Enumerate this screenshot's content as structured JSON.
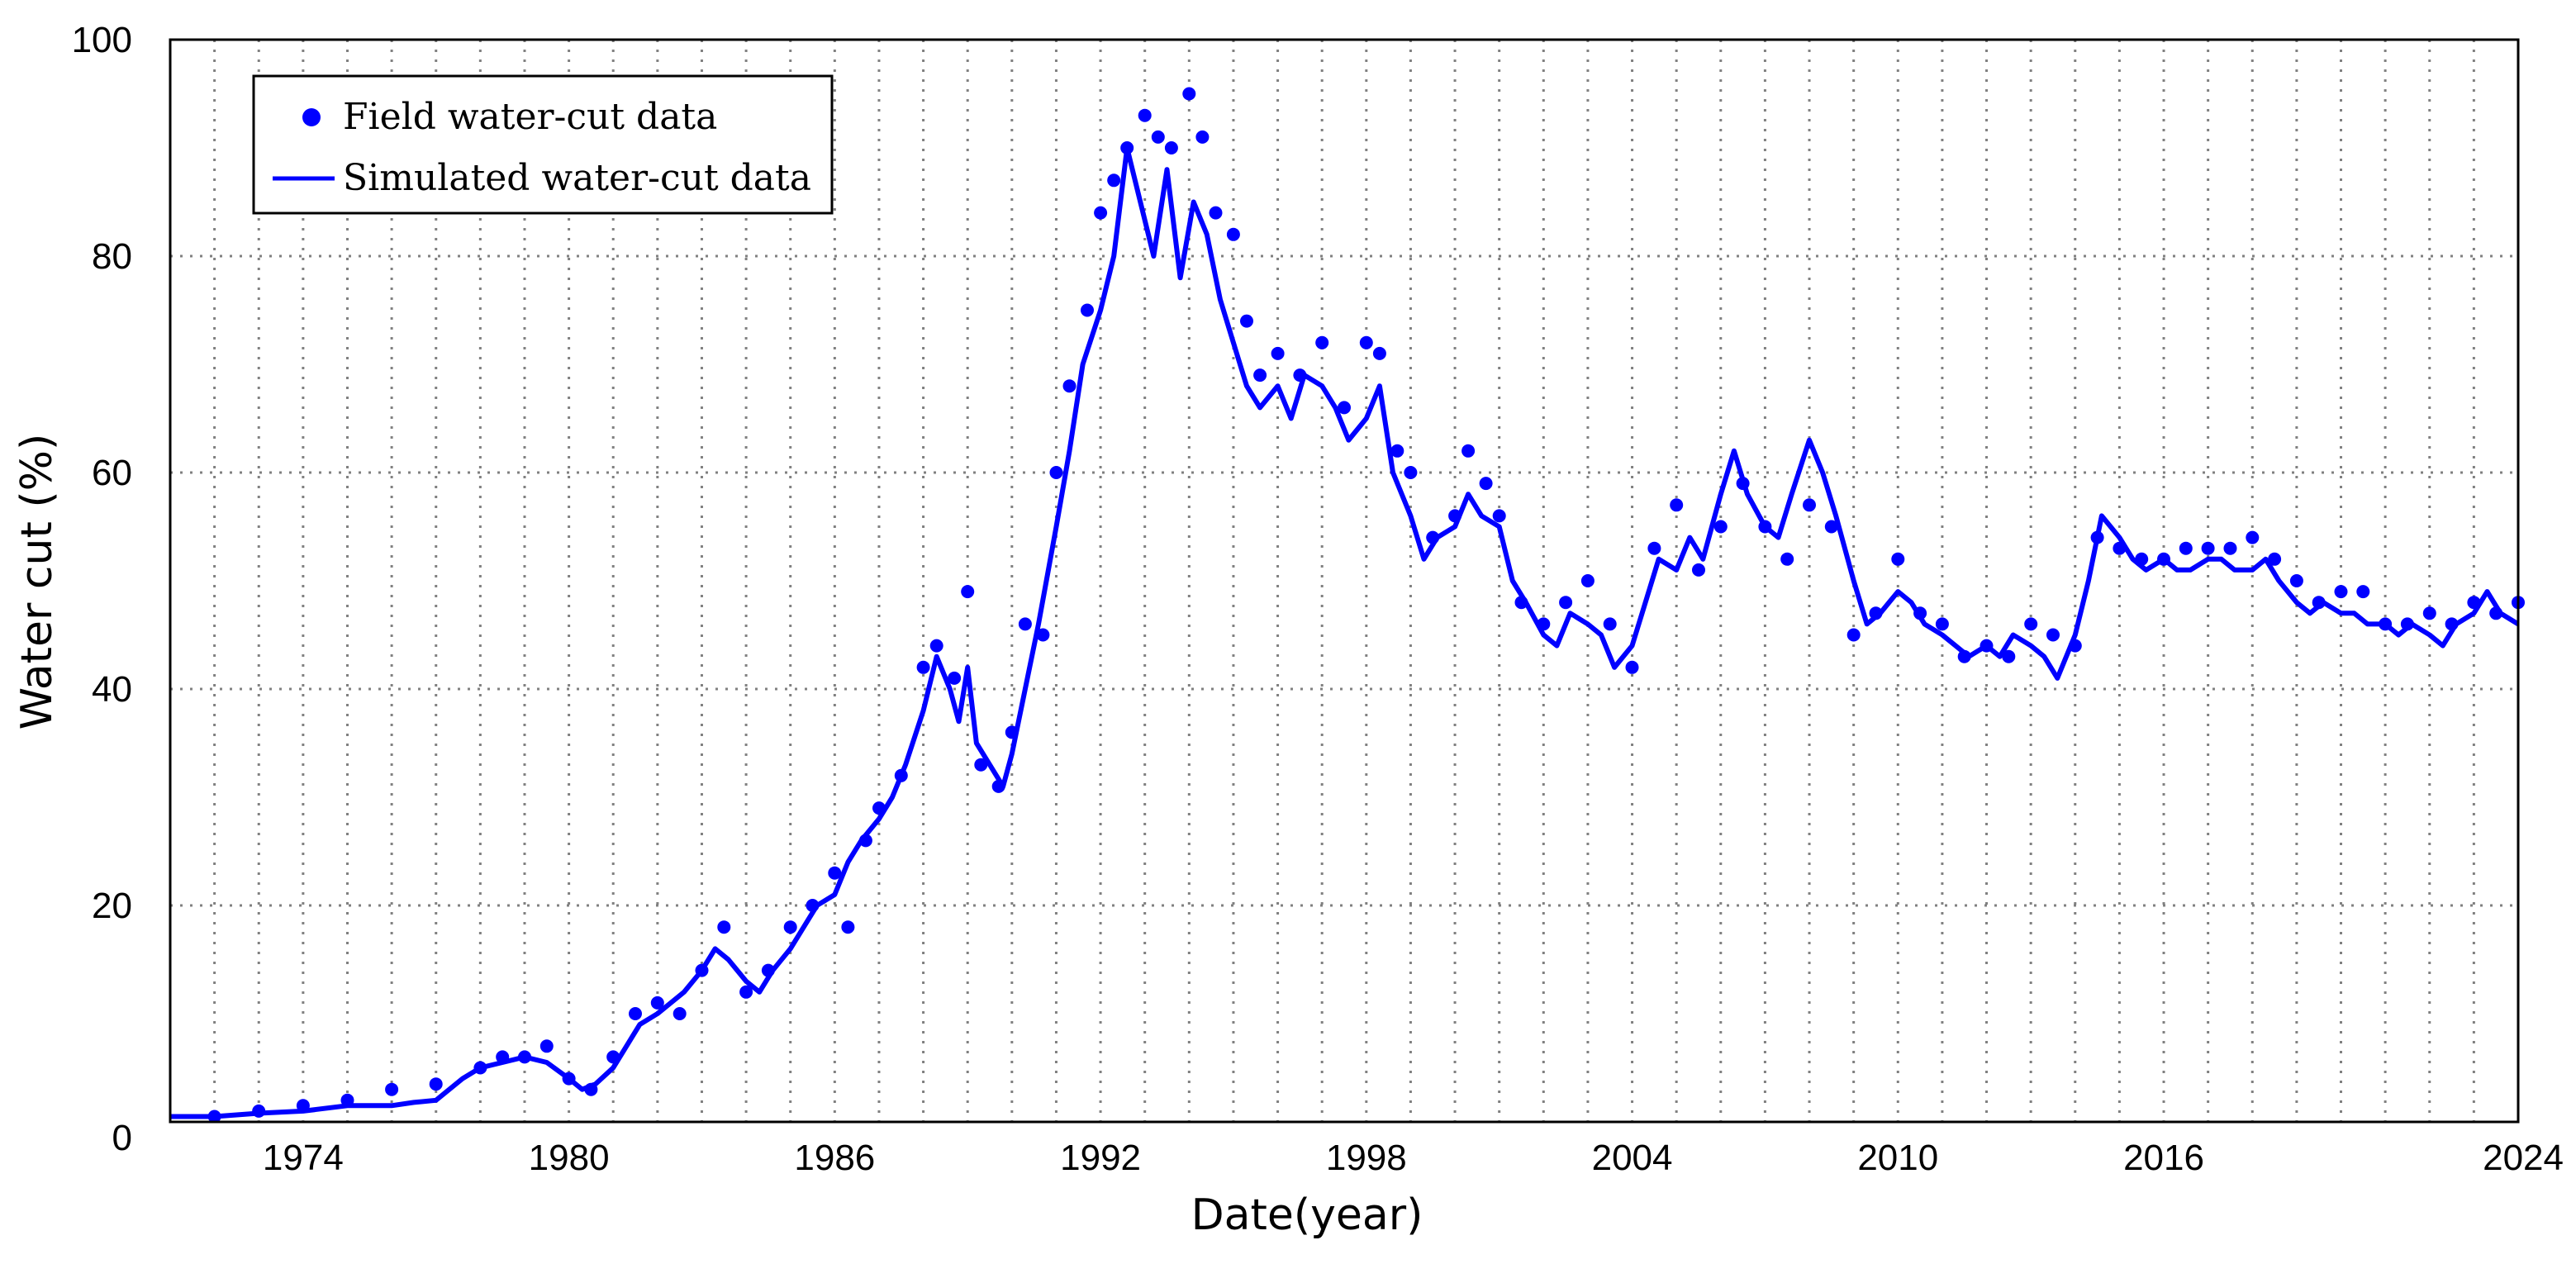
{
  "chart_data": {
    "type": "line",
    "title": "",
    "xlabel": "Date(year)",
    "ylabel": "Water cut (%)",
    "xlim": [
      1971.0,
      2024.0
    ],
    "ylim": [
      0,
      100
    ],
    "x_ticks": [
      "1974",
      "1980",
      "1986",
      "1992",
      "1998",
      "2004",
      "2010",
      "2016",
      "2024"
    ],
    "x_tick_values": [
      1974,
      1980,
      1986,
      1992,
      1998,
      2004,
      2010,
      2016,
      2024
    ],
    "y_ticks": [
      "0",
      "20",
      "40",
      "60",
      "80",
      "100"
    ],
    "y_tick_values": [
      0,
      20,
      40,
      60,
      80,
      100
    ],
    "x_grid_values": [
      1972,
      1973,
      1974,
      1975,
      1976,
      1977,
      1978,
      1979,
      1980,
      1981,
      1982,
      1983,
      1984,
      1985,
      1986,
      1987,
      1988,
      1989,
      1990,
      1991,
      1992,
      1993,
      1994,
      1995,
      1996,
      1997,
      1998,
      1999,
      2000,
      2001,
      2002,
      2003,
      2004,
      2005,
      2006,
      2007,
      2008,
      2009,
      2010,
      2011,
      2012,
      2013,
      2014,
      2015,
      2016,
      2017,
      2018,
      2019,
      2020,
      2021,
      2022,
      2023
    ],
    "y_grid_values": [
      20,
      40,
      60,
      80
    ],
    "grid": true,
    "legend_position": "top-left",
    "colors": {
      "series": "#0000ff",
      "axis": "#000000",
      "grid": "#808080"
    },
    "series": [
      {
        "name": "Field water-cut data",
        "type": "scatter",
        "x": [
          1972.0,
          1973.0,
          1974.0,
          1975.0,
          1976.0,
          1977.0,
          1978.0,
          1978.5,
          1979.0,
          1979.5,
          1980.0,
          1980.5,
          1981.0,
          1981.5,
          1982.0,
          1982.5,
          1983.0,
          1983.5,
          1984.0,
          1984.5,
          1985.0,
          1985.5,
          1986.0,
          1986.3,
          1986.7,
          1987.0,
          1987.5,
          1988.0,
          1988.3,
          1988.7,
          1989.0,
          1989.3,
          1989.7,
          1990.0,
          1990.3,
          1990.7,
          1991.0,
          1991.3,
          1991.7,
          1992.0,
          1992.3,
          1992.6,
          1993.0,
          1993.3,
          1993.6,
          1994.0,
          1994.3,
          1994.6,
          1995.0,
          1995.3,
          1995.6,
          1996.0,
          1996.5,
          1997.0,
          1997.5,
          1998.0,
          1998.3,
          1998.7,
          1999.0,
          1999.5,
          2000.0,
          2000.3,
          2000.7,
          2001.0,
          2001.5,
          2002.0,
          2002.5,
          2003.0,
          2003.5,
          2004.0,
          2004.5,
          2005.0,
          2005.5,
          2006.0,
          2006.5,
          2007.0,
          2007.5,
          2008.0,
          2008.5,
          2009.0,
          2009.5,
          2010.0,
          2010.5,
          2011.0,
          2011.5,
          2012.0,
          2012.5,
          2013.0,
          2013.5,
          2014.0,
          2014.5,
          2015.0,
          2015.5,
          2016.0,
          2016.5,
          2017.0,
          2017.5,
          2018.0,
          2018.5,
          2019.0,
          2019.5,
          2020.0,
          2020.5,
          2021.0,
          2021.5,
          2022.0,
          2022.5,
          2023.0,
          2023.5,
          2024.0
        ],
        "y": [
          0.5,
          1,
          1.5,
          2,
          3,
          3.5,
          5,
          6,
          6,
          7,
          4,
          3,
          6,
          10,
          11,
          10,
          14,
          18,
          12,
          14,
          18,
          20,
          23,
          18,
          26,
          29,
          32,
          42,
          44,
          41,
          49,
          33,
          31,
          36,
          46,
          45,
          60,
          68,
          75,
          84,
          87,
          90,
          93,
          91,
          90,
          95,
          91,
          84,
          82,
          74,
          69,
          71,
          69,
          72,
          66,
          72,
          71,
          62,
          60,
          54,
          56,
          62,
          59,
          56,
          48,
          46,
          48,
          50,
          46,
          42,
          53,
          57,
          51,
          55,
          59,
          55,
          52,
          57,
          55,
          45,
          47,
          52,
          47,
          46,
          43,
          44,
          43,
          46,
          45,
          44,
          54,
          53,
          52,
          52,
          53,
          53,
          53,
          54,
          52,
          50,
          48,
          49,
          49,
          46,
          46,
          47,
          46,
          48,
          47,
          48
        ]
      },
      {
        "name": "Simulated water-cut data",
        "type": "line",
        "x": [
          1971.0,
          1972.0,
          1973.0,
          1974.0,
          1975.0,
          1976.0,
          1976.5,
          1977.0,
          1977.3,
          1977.6,
          1978.0,
          1978.5,
          1979.0,
          1979.5,
          1980.0,
          1980.3,
          1980.6,
          1981.0,
          1981.3,
          1981.6,
          1982.0,
          1982.3,
          1982.6,
          1983.0,
          1983.3,
          1983.6,
          1984.0,
          1984.3,
          1984.6,
          1985.0,
          1985.3,
          1985.6,
          1986.0,
          1986.3,
          1986.6,
          1987.0,
          1987.3,
          1987.6,
          1988.0,
          1988.3,
          1988.6,
          1988.8,
          1989.0,
          1989.2,
          1989.5,
          1989.8,
          1990.0,
          1990.3,
          1990.6,
          1991.0,
          1991.3,
          1991.6,
          1992.0,
          1992.3,
          1992.6,
          1992.9,
          1993.2,
          1993.5,
          1993.8,
          1994.1,
          1994.4,
          1994.7,
          1995.0,
          1995.3,
          1995.6,
          1996.0,
          1996.3,
          1996.6,
          1997.0,
          1997.3,
          1997.6,
          1998.0,
          1998.3,
          1998.6,
          1999.0,
          1999.3,
          1999.6,
          2000.0,
          2000.3,
          2000.6,
          2001.0,
          2001.3,
          2001.6,
          2002.0,
          2002.3,
          2002.6,
          2003.0,
          2003.3,
          2003.6,
          2004.0,
          2004.3,
          2004.6,
          2005.0,
          2005.3,
          2005.6,
          2006.0,
          2006.3,
          2006.6,
          2007.0,
          2007.3,
          2007.6,
          2008.0,
          2008.3,
          2008.6,
          2009.0,
          2009.3,
          2009.6,
          2010.0,
          2010.3,
          2010.6,
          2011.0,
          2011.3,
          2011.6,
          2012.0,
          2012.3,
          2012.6,
          2013.0,
          2013.3,
          2013.6,
          2014.0,
          2014.3,
          2014.6,
          2015.0,
          2015.3,
          2015.6,
          2016.0,
          2016.3,
          2016.6,
          2017.0,
          2017.3,
          2017.6,
          2018.0,
          2018.3,
          2018.6,
          2019.0,
          2019.3,
          2019.6,
          2020.0,
          2020.3,
          2020.6,
          2021.0,
          2021.3,
          2021.6,
          2022.0,
          2022.3,
          2022.6,
          2023.0,
          2023.3,
          2023.6,
          2024.0
        ],
        "y": [
          0.5,
          0.5,
          0.8,
          1,
          1.5,
          1.5,
          1.8,
          2,
          3,
          4,
          5,
          5.5,
          6,
          5.5,
          4,
          3,
          3.5,
          5,
          7,
          9,
          10,
          11,
          12,
          14,
          16,
          15,
          13,
          12,
          14,
          16,
          18,
          20,
          21,
          24,
          26,
          28,
          30,
          33,
          38,
          43,
          40,
          37,
          42,
          35,
          33,
          31,
          34,
          40,
          46,
          55,
          62,
          70,
          75,
          80,
          90,
          85,
          80,
          88,
          78,
          85,
          82,
          76,
          72,
          68,
          66,
          68,
          65,
          69,
          68,
          66,
          63,
          65,
          68,
          60,
          56,
          52,
          54,
          55,
          58,
          56,
          55,
          50,
          48,
          45,
          44,
          47,
          46,
          45,
          42,
          44,
          48,
          52,
          51,
          54,
          52,
          58,
          62,
          58,
          55,
          54,
          58,
          63,
          60,
          56,
          50,
          46,
          47,
          49,
          48,
          46,
          45,
          44,
          43,
          44,
          43,
          45,
          44,
          43,
          41,
          45,
          50,
          56,
          54,
          52,
          51,
          52,
          51,
          51,
          52,
          52,
          51,
          51,
          52,
          50,
          48,
          47,
          48,
          47,
          47,
          46,
          46,
          45,
          46,
          45,
          44,
          46,
          47,
          49,
          47,
          46
        ]
      }
    ]
  }
}
